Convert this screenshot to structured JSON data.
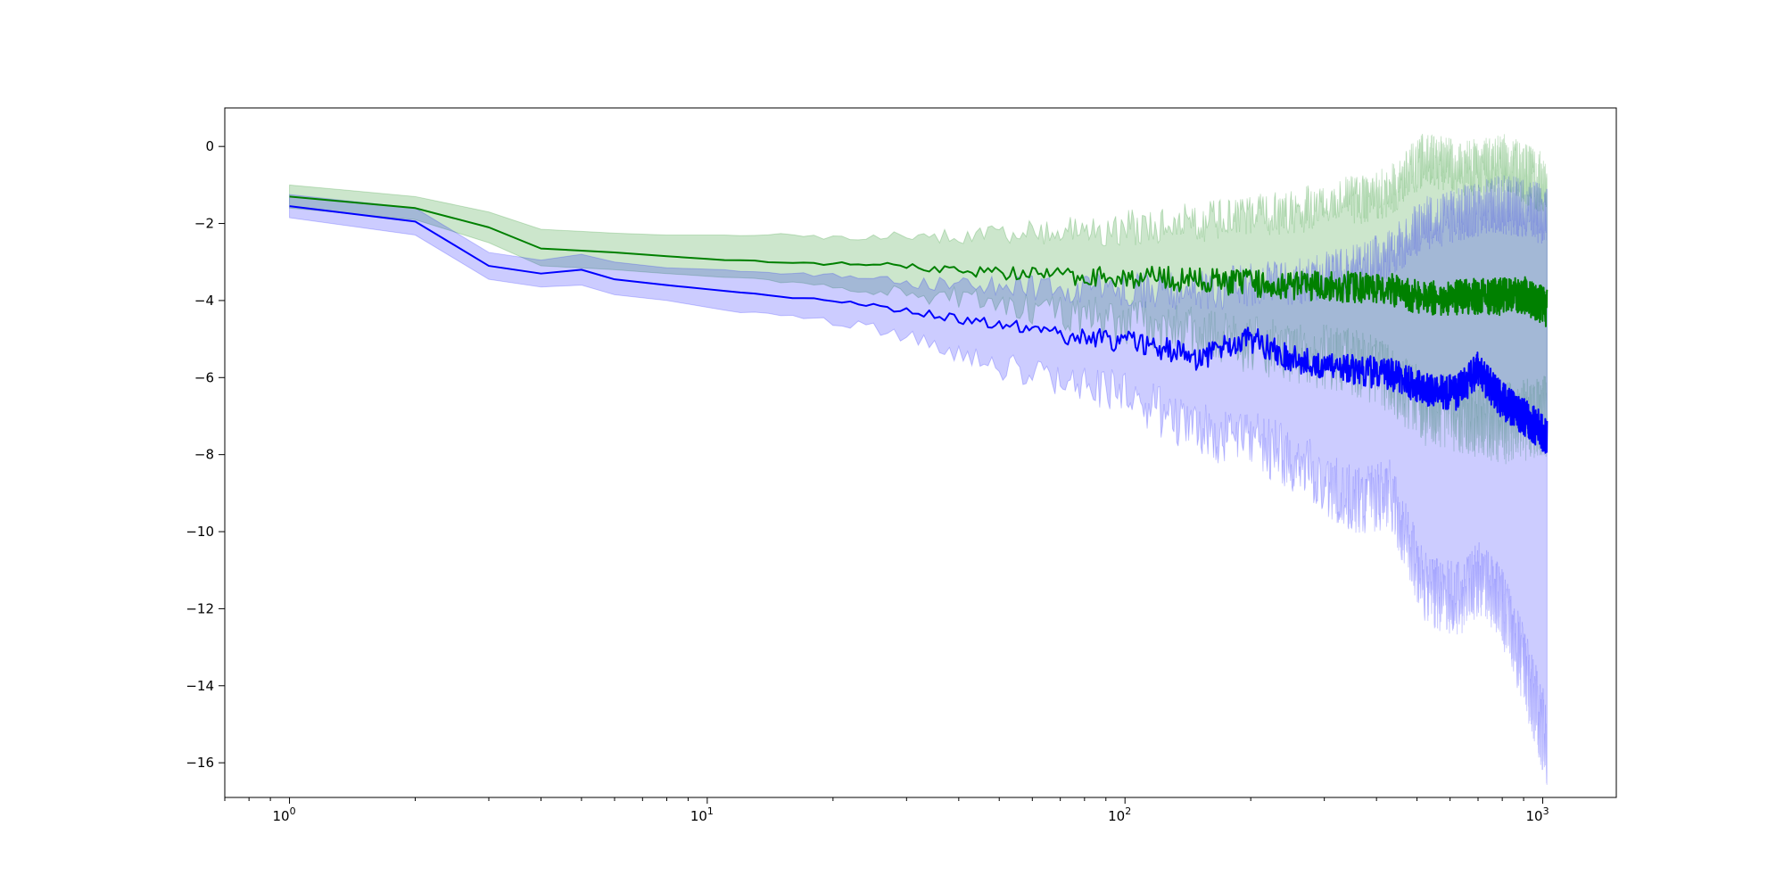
{
  "chart_data": {
    "type": "line",
    "title": "",
    "xlabel": "",
    "ylabel": "",
    "x_scale": "log",
    "xlim": [
      0.7,
      1500
    ],
    "ylim": [
      -16.9,
      1.0
    ],
    "grid": false,
    "legend": "none",
    "x_ticks": [
      {
        "value": 1,
        "base": "10",
        "exp": "0"
      },
      {
        "value": 10,
        "base": "10",
        "exp": "1"
      },
      {
        "value": 100,
        "base": "10",
        "exp": "2"
      },
      {
        "value": 1000,
        "base": "10",
        "exp": "3"
      }
    ],
    "y_ticks": [
      {
        "value": 0,
        "label": "0"
      },
      {
        "value": -2,
        "label": "−2"
      },
      {
        "value": -4,
        "label": "−4"
      },
      {
        "value": -6,
        "label": "−6"
      },
      {
        "value": -8,
        "label": "−8"
      },
      {
        "value": -10,
        "label": "−10"
      },
      {
        "value": -12,
        "label": "−12"
      },
      {
        "value": -14,
        "label": "−14"
      },
      {
        "value": -16,
        "label": "−16"
      }
    ],
    "series": [
      {
        "color": "#008000",
        "band_color": "#008000",
        "band_opacity": 0.2,
        "points": [
          {
            "x": 1,
            "y": -1.3,
            "lo": -1.6,
            "hi": -1.0
          },
          {
            "x": 2,
            "y": -1.6,
            "lo": -1.9,
            "hi": -1.3
          },
          {
            "x": 3,
            "y": -2.1,
            "lo": -2.5,
            "hi": -1.7
          },
          {
            "x": 4,
            "y": -2.65,
            "lo": -3.1,
            "hi": -2.15
          },
          {
            "x": 6,
            "y": -2.75,
            "lo": -3.2,
            "hi": -2.25
          },
          {
            "x": 8,
            "y": -2.85,
            "lo": -3.3,
            "hi": -2.3
          },
          {
            "x": 11,
            "y": -2.95,
            "lo": -3.4,
            "hi": -2.3
          },
          {
            "x": 15,
            "y": -3.0,
            "lo": -3.5,
            "hi": -2.3
          },
          {
            "x": 20,
            "y": -3.05,
            "lo": -3.6,
            "hi": -2.35
          },
          {
            "x": 30,
            "y": -3.1,
            "lo": -3.8,
            "hi": -2.35
          },
          {
            "x": 45,
            "y": -3.25,
            "lo": -4.0,
            "hi": -2.3
          },
          {
            "x": 70,
            "y": -3.35,
            "lo": -4.3,
            "hi": -2.2
          },
          {
            "x": 110,
            "y": -3.4,
            "lo": -4.6,
            "hi": -2.1
          },
          {
            "x": 170,
            "y": -3.5,
            "lo": -5.0,
            "hi": -1.9
          },
          {
            "x": 250,
            "y": -3.6,
            "lo": -5.3,
            "hi": -1.7
          },
          {
            "x": 350,
            "y": -3.65,
            "lo": -5.6,
            "hi": -1.4
          },
          {
            "x": 430,
            "y": -3.7,
            "lo": -6.0,
            "hi": -1.2
          },
          {
            "x": 520,
            "y": -3.95,
            "lo": -6.8,
            "hi": -0.3
          },
          {
            "x": 650,
            "y": -3.9,
            "lo": -7.0,
            "hi": -0.6
          },
          {
            "x": 800,
            "y": -3.9,
            "lo": -7.2,
            "hi": -0.4
          },
          {
            "x": 900,
            "y": -3.85,
            "lo": -7.1,
            "hi": -0.7
          },
          {
            "x": 1024,
            "y": -4.2,
            "lo": -7.0,
            "hi": -1.0
          }
        ]
      },
      {
        "color": "#0000ff",
        "band_color": "#0000ff",
        "band_opacity": 0.2,
        "points": [
          {
            "x": 1,
            "y": -1.55,
            "lo": -1.85,
            "hi": -1.25
          },
          {
            "x": 2,
            "y": -1.95,
            "lo": -2.3,
            "hi": -1.6
          },
          {
            "x": 3,
            "y": -3.1,
            "lo": -3.45,
            "hi": -2.75
          },
          {
            "x": 4,
            "y": -3.3,
            "lo": -3.65,
            "hi": -2.95
          },
          {
            "x": 5,
            "y": -3.2,
            "lo": -3.6,
            "hi": -2.8
          },
          {
            "x": 6,
            "y": -3.45,
            "lo": -3.85,
            "hi": -3.0
          },
          {
            "x": 8,
            "y": -3.6,
            "lo": -4.0,
            "hi": -3.15
          },
          {
            "x": 11,
            "y": -3.75,
            "lo": -4.25,
            "hi": -3.2
          },
          {
            "x": 15,
            "y": -3.9,
            "lo": -4.4,
            "hi": -3.3
          },
          {
            "x": 22,
            "y": -4.05,
            "lo": -4.6,
            "hi": -3.4
          },
          {
            "x": 32,
            "y": -4.3,
            "lo": -5.0,
            "hi": -3.55
          },
          {
            "x": 45,
            "y": -4.55,
            "lo": -5.6,
            "hi": -3.6
          },
          {
            "x": 70,
            "y": -4.9,
            "lo": -6.0,
            "hi": -3.7
          },
          {
            "x": 110,
            "y": -5.1,
            "lo": -6.6,
            "hi": -3.7
          },
          {
            "x": 150,
            "y": -5.5,
            "lo": -7.4,
            "hi": -3.75
          },
          {
            "x": 200,
            "y": -5.0,
            "lo": -7.6,
            "hi": -3.6
          },
          {
            "x": 260,
            "y": -5.6,
            "lo": -8.2,
            "hi": -3.5
          },
          {
            "x": 350,
            "y": -5.8,
            "lo": -9.2,
            "hi": -3.2
          },
          {
            "x": 430,
            "y": -5.9,
            "lo": -9.0,
            "hi": -2.8
          },
          {
            "x": 520,
            "y": -6.3,
            "lo": -11.5,
            "hi": -2.0
          },
          {
            "x": 620,
            "y": -6.4,
            "lo": -11.8,
            "hi": -1.8
          },
          {
            "x": 700,
            "y": -5.8,
            "lo": -11.2,
            "hi": -1.6
          },
          {
            "x": 800,
            "y": -6.6,
            "lo": -12.0,
            "hi": -1.5
          },
          {
            "x": 900,
            "y": -7.0,
            "lo": -13.5,
            "hi": -1.6
          },
          {
            "x": 1024,
            "y": -7.5,
            "lo": -15.5,
            "hi": -1.8
          }
        ]
      }
    ]
  }
}
